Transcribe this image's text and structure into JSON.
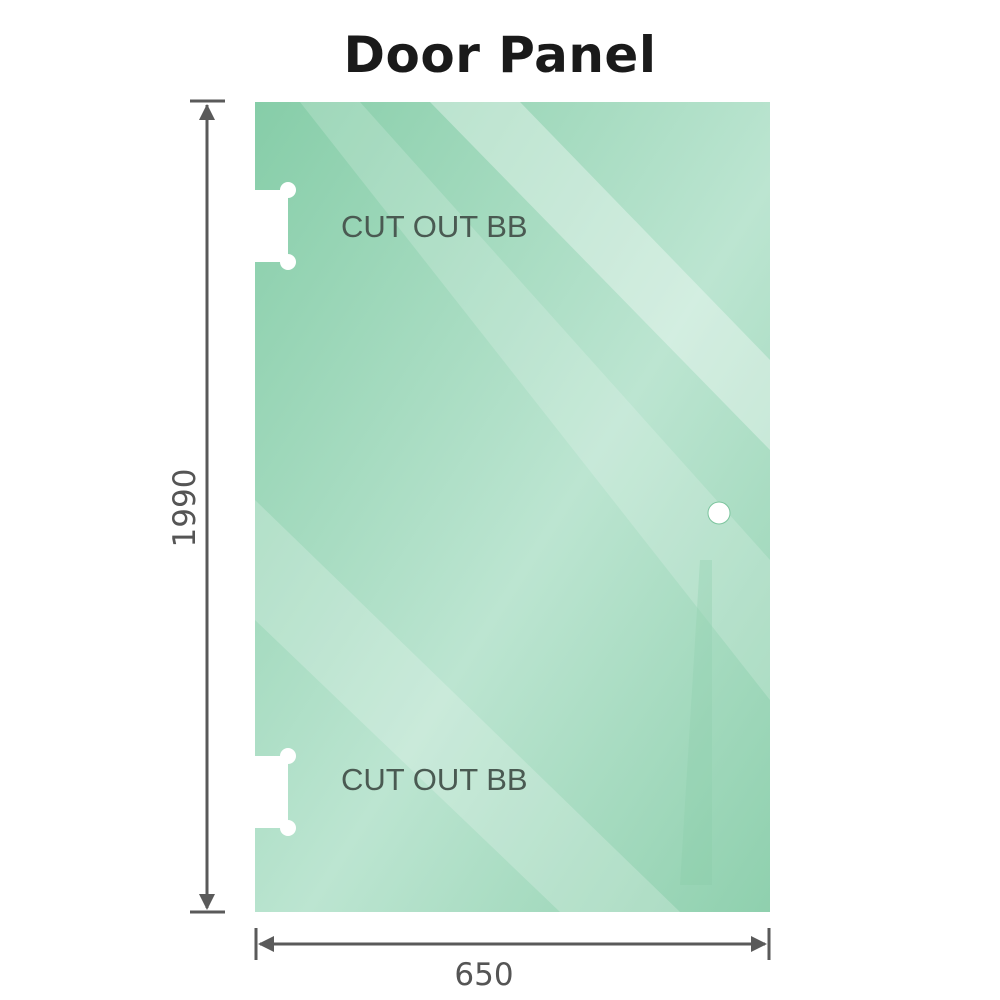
{
  "title": "Door Panel",
  "cutouts": [
    {
      "label": "CUT OUT BB"
    },
    {
      "label": "CUT OUT BB"
    }
  ],
  "dimensions": {
    "height": "1990",
    "width": "650"
  },
  "colors": {
    "glass": "#8fd0ae",
    "glass_light": "#bfe6d2",
    "dimension_line": "#5a5a5a",
    "label_text": "#4a5a52"
  }
}
